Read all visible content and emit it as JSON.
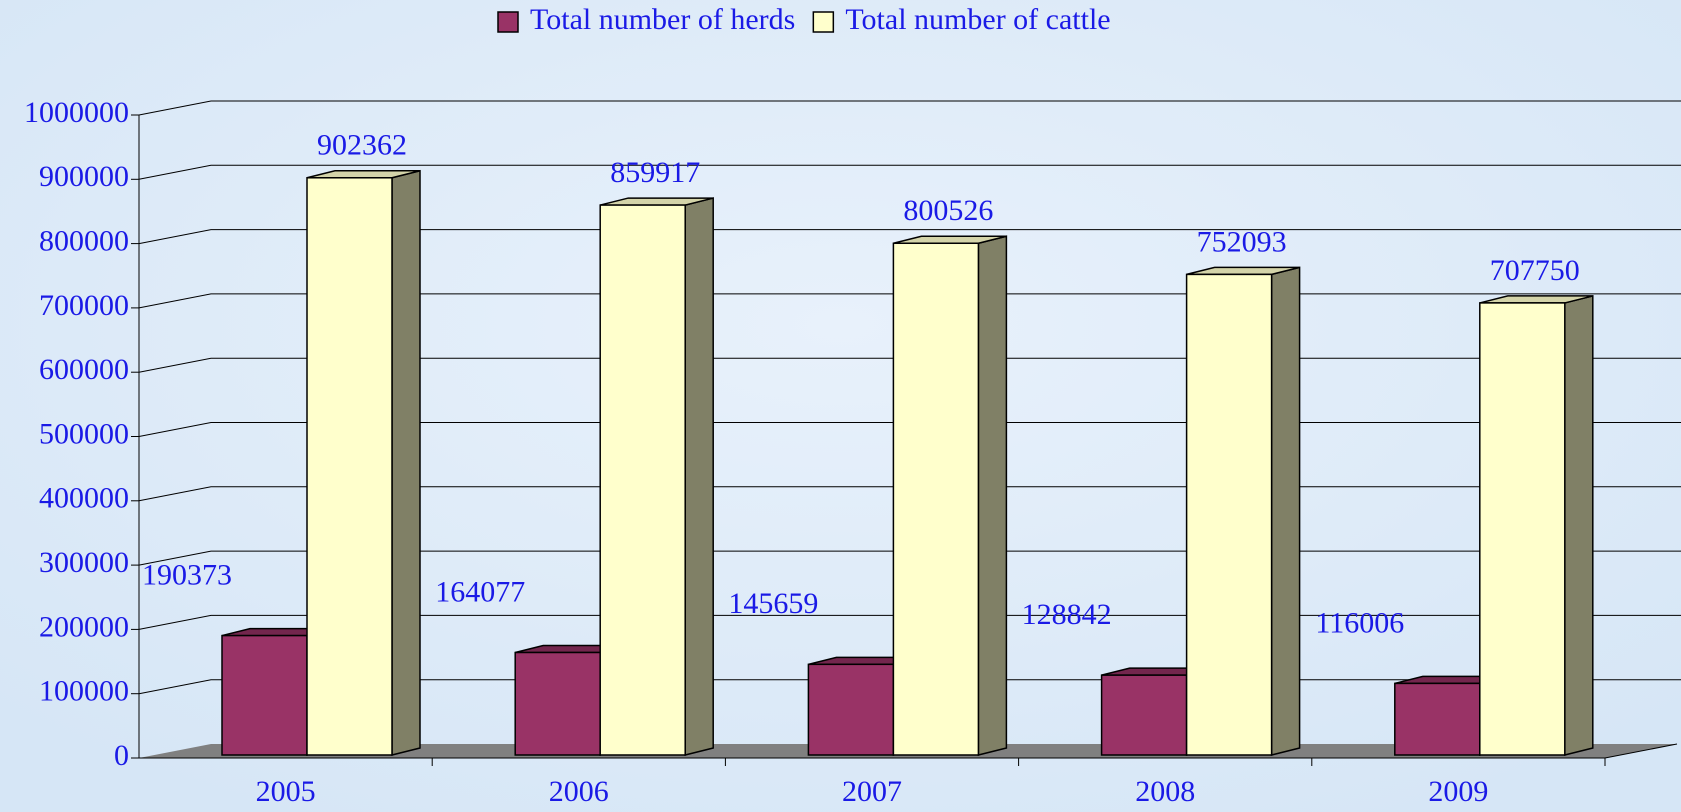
{
  "chart_data": {
    "type": "bar3d",
    "categories": [
      "2005",
      "2006",
      "2007",
      "2008",
      "2009"
    ],
    "series": [
      {
        "name": "Total number of herds",
        "color": "#993366",
        "values": [
          190373,
          164077,
          145659,
          128842,
          116006
        ]
      },
      {
        "name": "Total number of cattle",
        "color": "#ffffcc",
        "values": [
          902362,
          859917,
          800526,
          752093,
          707750
        ]
      }
    ],
    "ylim": [
      0,
      1000000
    ],
    "yticks": [
      0,
      100000,
      200000,
      300000,
      400000,
      500000,
      600000,
      700000,
      800000,
      900000,
      1000000
    ],
    "grid": true,
    "legend": "top"
  }
}
